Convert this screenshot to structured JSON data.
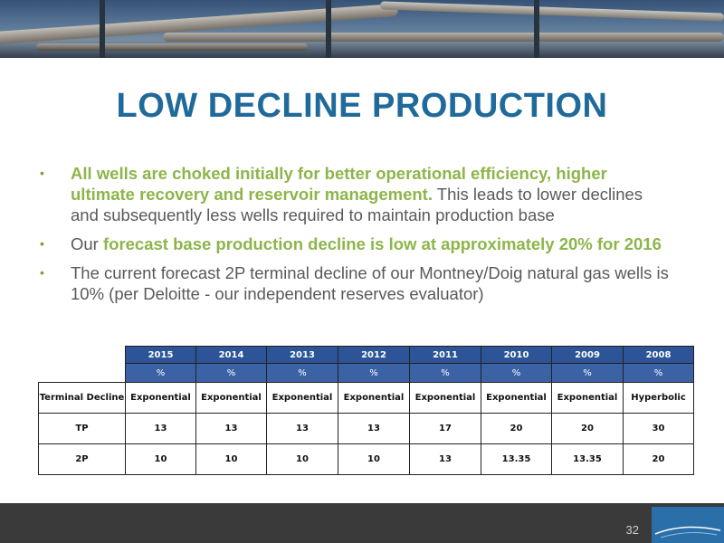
{
  "slide": {
    "title": "LOW DECLINE PRODUCTION",
    "page_number": "32"
  },
  "bullets": [
    {
      "highlight": "All wells are choked initially for better operational efficiency, higher ultimate recovery and reservoir management.",
      "text": " This leads to lower declines and subsequently less wells required to maintain production base"
    },
    {
      "prefix": "Our ",
      "highlight": "forecast base production decline is low at approximately 20% for 2016"
    },
    {
      "text": "The current forecast 2P terminal decline of our Montney/Doig natural gas wells is 10% (per Deloitte - our independent reserves evaluator)"
    }
  ],
  "table": {
    "years": [
      "2015",
      "2014",
      "2013",
      "2012",
      "2011",
      "2010",
      "2009",
      "2008"
    ],
    "units": [
      "%",
      "%",
      "%",
      "%",
      "%",
      "%",
      "%",
      "%"
    ],
    "rows": [
      {
        "label": "Terminal Decline",
        "values": [
          "Exponential",
          "Exponential",
          "Exponential",
          "Exponential",
          "Exponential",
          "Exponential",
          "Exponential",
          "Hyperbolic"
        ]
      },
      {
        "label": "TP",
        "values": [
          "13",
          "13",
          "13",
          "13",
          "17",
          "20",
          "20",
          "30"
        ]
      },
      {
        "label": "2P",
        "values": [
          "10",
          "10",
          "10",
          "10",
          "13",
          "13.35",
          "13.35",
          "20"
        ]
      }
    ]
  },
  "logo": {
    "name": "Baytex-style company logo",
    "icon": "company-logo"
  },
  "colors": {
    "title": "#1f6a9a",
    "highlight": "#8db54a",
    "table_header": "#2c5496",
    "footer": "#3a3a3a"
  }
}
